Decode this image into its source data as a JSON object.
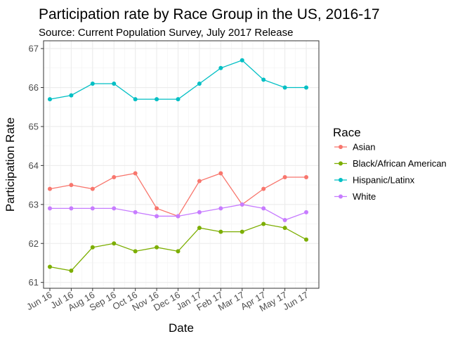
{
  "chart_data": {
    "type": "line",
    "title": "Participation rate by Race Group in the US, 2016-17",
    "subtitle": "Source: Current Population Survey, July 2017 Release",
    "xlabel": "Date",
    "ylabel": "Participation Rate",
    "ylim": [
      60.85,
      67.2
    ],
    "yticks": [
      61,
      62,
      63,
      64,
      65,
      66,
      67
    ],
    "grid": true,
    "legend_title": "Race",
    "legend_position": "right",
    "categories": [
      "Jun 16",
      "Jul 16",
      "Aug 16",
      "Sep 16",
      "Oct 16",
      "Nov 16",
      "Dec 16",
      "Jan 17",
      "Feb 17",
      "Mar 17",
      "Apr 17",
      "May 17",
      "Jun 17"
    ],
    "series": [
      {
        "name": "Asian",
        "color": "#F8766D",
        "values": [
          63.4,
          63.5,
          63.4,
          63.7,
          63.8,
          62.9,
          62.7,
          63.6,
          63.8,
          63.0,
          63.4,
          63.7,
          63.7
        ]
      },
      {
        "name": "Black/African American",
        "color": "#7CAE00",
        "values": [
          61.4,
          61.3,
          61.9,
          62.0,
          61.8,
          61.9,
          61.8,
          62.4,
          62.3,
          62.3,
          62.5,
          62.4,
          62.1
        ]
      },
      {
        "name": "Hispanic/Latinx",
        "color": "#00BFC4",
        "values": [
          65.7,
          65.8,
          66.1,
          66.1,
          65.7,
          65.7,
          65.7,
          66.1,
          66.5,
          66.7,
          66.2,
          66.0,
          66.0
        ]
      },
      {
        "name": "White",
        "color": "#C77CFF",
        "values": [
          62.9,
          62.9,
          62.9,
          62.9,
          62.8,
          62.7,
          62.7,
          62.8,
          62.9,
          63.0,
          62.9,
          62.6,
          62.8
        ]
      }
    ]
  }
}
